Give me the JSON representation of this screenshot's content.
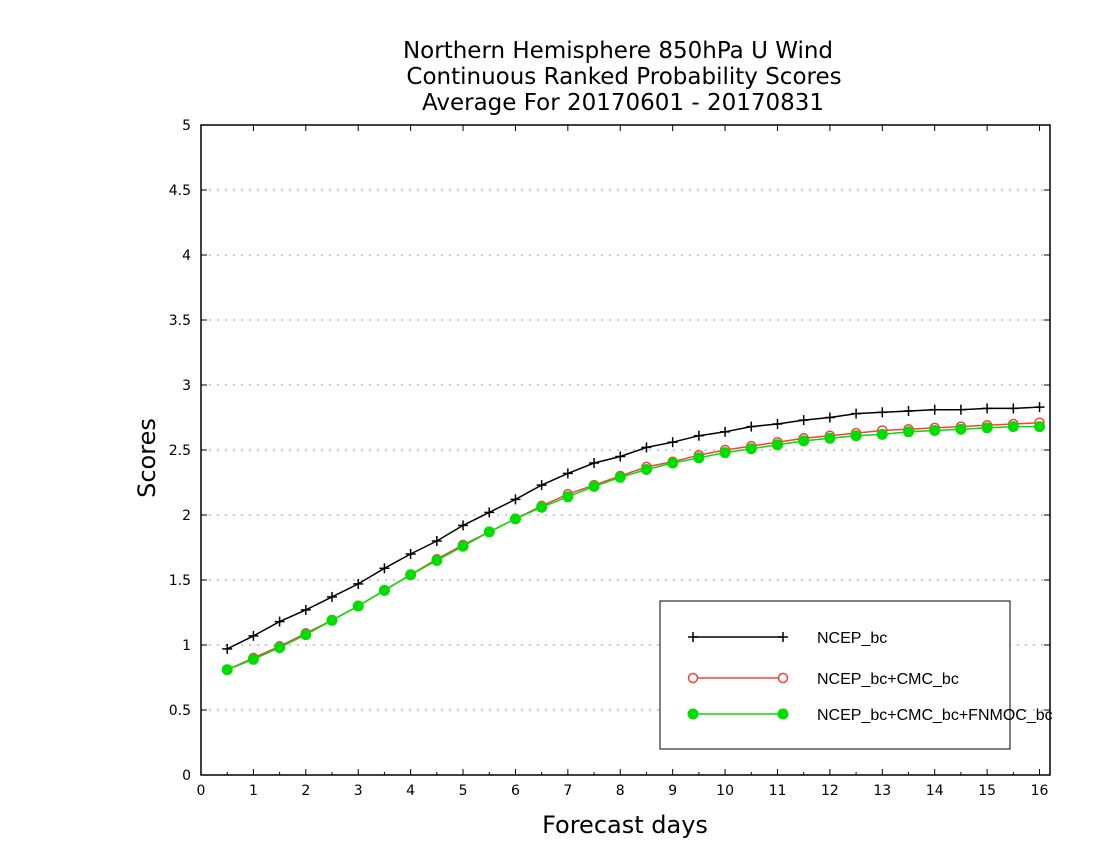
{
  "chart_data": {
    "type": "line",
    "title_lines": [
      "Northern Hemisphere 850hPa U Wind",
      "Continuous Ranked Probability Scores",
      "Average For 20170601 - 20170831"
    ],
    "xlabel": "Forecast days",
    "ylabel": "Scores",
    "xlim": [
      0,
      16.2
    ],
    "ylim": [
      0,
      5
    ],
    "x_ticks": [
      0,
      1,
      2,
      3,
      4,
      5,
      6,
      7,
      8,
      9,
      10,
      11,
      12,
      13,
      14,
      15,
      16
    ],
    "y_ticks": [
      0,
      0.5,
      1,
      1.5,
      2,
      2.5,
      3,
      3.5,
      4,
      4.5,
      5
    ],
    "y_tick_labels": [
      "0",
      "0.5",
      "1",
      "1.5",
      "2",
      "2.5",
      "3",
      "3.5",
      "4",
      "4.5",
      "5"
    ],
    "grid": true,
    "legend_position": "bottom-right",
    "x": [
      0.5,
      1,
      1.5,
      2,
      2.5,
      3,
      3.5,
      4,
      4.5,
      5,
      5.5,
      6,
      6.5,
      7,
      7.5,
      8,
      8.5,
      9,
      9.5,
      10,
      10.5,
      11,
      11.5,
      12,
      12.5,
      13,
      13.5,
      14,
      14.5,
      15,
      15.5,
      16
    ],
    "series": [
      {
        "name": "NCEP_bc",
        "color": "#000000",
        "marker": "plus",
        "values": [
          0.97,
          1.07,
          1.18,
          1.27,
          1.37,
          1.47,
          1.59,
          1.7,
          1.8,
          1.92,
          2.02,
          2.12,
          2.23,
          2.32,
          2.4,
          2.45,
          2.52,
          2.56,
          2.61,
          2.64,
          2.68,
          2.7,
          2.73,
          2.75,
          2.78,
          2.79,
          2.8,
          2.81,
          2.81,
          2.82,
          2.82,
          2.83
        ]
      },
      {
        "name": "NCEP_bc+CMC_bc",
        "color": "#ff3b3b",
        "marker": "open-circle",
        "values": [
          0.81,
          0.9,
          0.99,
          1.09,
          1.19,
          1.3,
          1.42,
          1.54,
          1.66,
          1.77,
          1.87,
          1.97,
          2.07,
          2.16,
          2.23,
          2.3,
          2.37,
          2.41,
          2.46,
          2.5,
          2.53,
          2.56,
          2.59,
          2.61,
          2.63,
          2.65,
          2.66,
          2.67,
          2.68,
          2.69,
          2.7,
          2.71
        ]
      },
      {
        "name": "NCEP_bc+CMC_bc+FNMOC_bc",
        "color": "#00dd00",
        "marker": "filled-circle",
        "values": [
          0.81,
          0.89,
          0.98,
          1.08,
          1.19,
          1.3,
          1.42,
          1.54,
          1.65,
          1.76,
          1.87,
          1.97,
          2.06,
          2.14,
          2.22,
          2.29,
          2.35,
          2.4,
          2.44,
          2.48,
          2.51,
          2.54,
          2.57,
          2.59,
          2.61,
          2.62,
          2.64,
          2.65,
          2.66,
          2.67,
          2.68,
          2.68
        ]
      }
    ]
  }
}
